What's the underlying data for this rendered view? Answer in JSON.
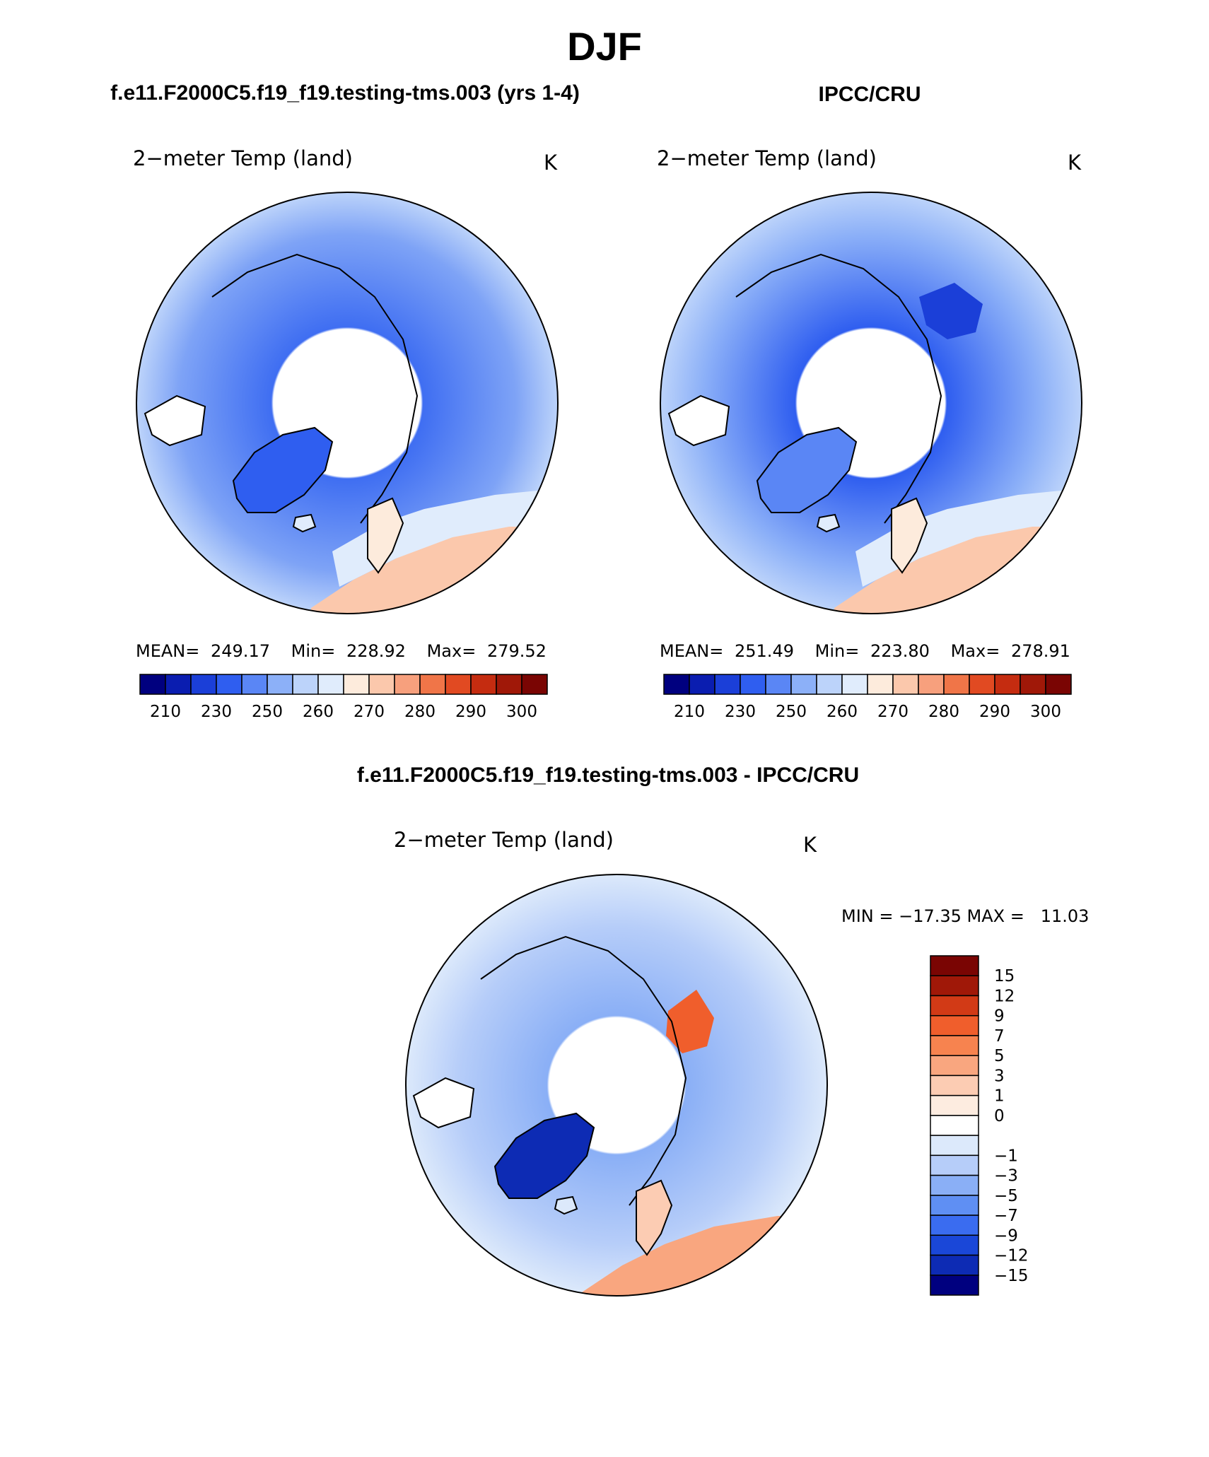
{
  "page": {
    "season": "DJF",
    "map_type": "North polar stereographic projection, land-only temperature field"
  },
  "panels": [
    {
      "id": "model",
      "header": "f.e11.F2000C5.f19_f19.testing-tms.003 (yrs 1-4)",
      "variable": "2−meter Temp (land)",
      "units": "K",
      "stats": {
        "mean_label": "MEAN=",
        "mean": "249.17",
        "min_label": "Min=",
        "min": "228.92",
        "max_label": "Max=",
        "max": "279.52"
      }
    },
    {
      "id": "obs",
      "header": "IPCC/CRU",
      "variable": "2−meter Temp (land)",
      "units": "K",
      "stats": {
        "mean_label": "MEAN=",
        "mean": "251.49",
        "min_label": "Min=",
        "min": "223.80",
        "max_label": "Max=",
        "max": "278.91"
      }
    },
    {
      "id": "diff",
      "header": "f.e11.F2000C5.f19_f19.testing-tms.003 - IPCC/CRU",
      "variable": "2−meter Temp (land)",
      "units": "K",
      "stats": {
        "text": "MIN = −17.35 MAX =   11.03"
      }
    }
  ],
  "chart_data": [
    {
      "type": "heatmap",
      "title": "2-meter Temp (land)",
      "units": "K",
      "panel": "f.e11.F2000C5.f19_f19.testing-tms.003 (yrs 1-4)",
      "mean": 249.17,
      "min": 228.92,
      "max": 279.52,
      "legend": {
        "ticks": [
          "210",
          "230",
          "250",
          "260",
          "270",
          "280",
          "290",
          "300"
        ],
        "colors": [
          "#00007f",
          "#0a1db0",
          "#1b3fd8",
          "#2f5ef0",
          "#5a86f5",
          "#8cb0f8",
          "#bcd3fa",
          "#e0ecfc",
          "#fdebdc",
          "#fbc8ac",
          "#f7a07d",
          "#f07548",
          "#e14a22",
          "#c52c10",
          "#a01808",
          "#7a0503"
        ]
      }
    },
    {
      "type": "heatmap",
      "title": "2-meter Temp (land)",
      "units": "K",
      "panel": "IPCC/CRU",
      "mean": 251.49,
      "min": 223.8,
      "max": 278.91,
      "legend": {
        "ticks": [
          "210",
          "230",
          "250",
          "260",
          "270",
          "280",
          "290",
          "300"
        ],
        "colors": [
          "#00007f",
          "#0a1db0",
          "#1b3fd8",
          "#2f5ef0",
          "#5a86f5",
          "#8cb0f8",
          "#bcd3fa",
          "#e0ecfc",
          "#fdebdc",
          "#fbc8ac",
          "#f7a07d",
          "#f07548",
          "#e14a22",
          "#c52c10",
          "#a01808",
          "#7a0503"
        ]
      }
    },
    {
      "type": "heatmap",
      "title": "2-meter Temp (land)",
      "units": "K",
      "panel": "f.e11.F2000C5.f19_f19.testing-tms.003 - IPCC/CRU",
      "min": -17.35,
      "max": 11.03,
      "legend": {
        "ticks": [
          "15",
          "12",
          "9",
          "7",
          "5",
          "3",
          "1",
          "0",
          "−1",
          "−3",
          "−5",
          "−7",
          "−9",
          "−12",
          "−15"
        ],
        "colors": [
          "#7a0503",
          "#a01808",
          "#d23a16",
          "#f05e2c",
          "#f7834f",
          "#f9a67f",
          "#fcccb3",
          "#fdece0",
          "#ffffff",
          "#dce9fb",
          "#b6cdf9",
          "#8aaff6",
          "#5f8ff3",
          "#3a6cf0",
          "#1a47d8",
          "#0d2bb4",
          "#00007f"
        ]
      }
    }
  ]
}
